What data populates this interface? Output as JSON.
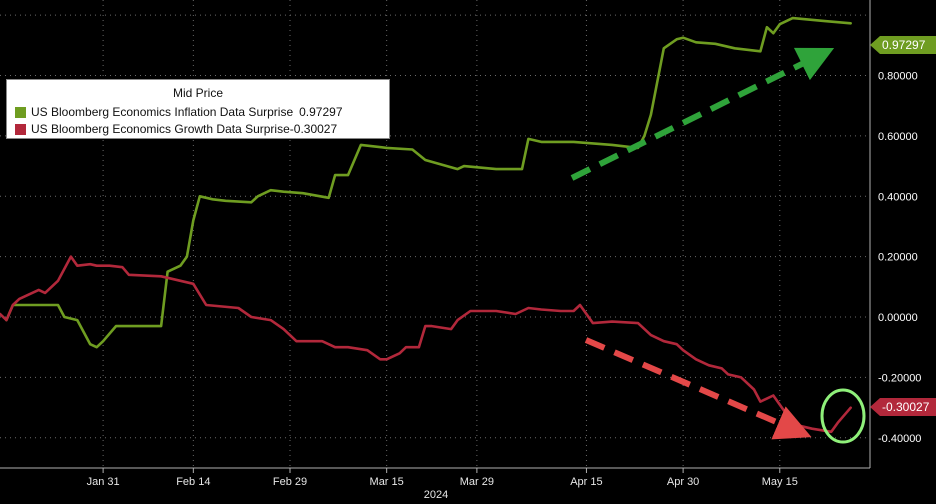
{
  "chart_data": {
    "type": "line",
    "title": "Mid Price",
    "xlabel": "2024",
    "ylabel": "",
    "ylim": [
      -0.5,
      1.05
    ],
    "yticks": [
      "0.80000",
      "0.60000",
      "0.40000",
      "0.20000",
      "0.00000",
      "-0.20000",
      "-0.40000"
    ],
    "ytick_values": [
      0.8,
      0.6,
      0.4,
      0.2,
      0.0,
      -0.2,
      -0.4
    ],
    "xticks": [
      "Jan 31",
      "Feb 14",
      "Feb 29",
      "Mar 15",
      "Mar 29",
      "Apr 15",
      "Apr 30",
      "May 15"
    ],
    "xtick_dates": [
      "2024-01-31",
      "2024-02-14",
      "2024-02-29",
      "2024-03-15",
      "2024-03-29",
      "2024-04-15",
      "2024-04-30",
      "2024-05-15"
    ],
    "xlim": [
      "2024-01-15",
      "2024-05-29"
    ],
    "grid": true,
    "legend": "top-left",
    "series": [
      {
        "name": "US Bloomberg Economics Inflation Data Surprise",
        "last_value": "0.97297",
        "color": "#6f9d21",
        "points": [
          [
            "2024-01-16",
            -0.01
          ],
          [
            "2024-01-17",
            0.04
          ],
          [
            "2024-01-21",
            0.04
          ],
          [
            "2024-01-24",
            0.04
          ],
          [
            "2024-01-25",
            0.0
          ],
          [
            "2024-01-27",
            -0.01
          ],
          [
            "2024-01-29",
            -0.09
          ],
          [
            "2024-01-30",
            -0.1
          ],
          [
            "2024-01-31",
            -0.08
          ],
          [
            "2024-02-02",
            -0.03
          ],
          [
            "2024-02-07",
            -0.03
          ],
          [
            "2024-02-09",
            -0.03
          ],
          [
            "2024-02-10",
            0.15
          ],
          [
            "2024-02-12",
            0.17
          ],
          [
            "2024-02-13",
            0.2
          ],
          [
            "2024-02-14",
            0.32
          ],
          [
            "2024-02-15",
            0.4
          ],
          [
            "2024-02-17",
            0.39
          ],
          [
            "2024-02-19",
            0.385
          ],
          [
            "2024-02-23",
            0.38
          ],
          [
            "2024-02-24",
            0.4
          ],
          [
            "2024-02-26",
            0.42
          ],
          [
            "2024-02-28",
            0.415
          ],
          [
            "2024-03-02",
            0.41
          ],
          [
            "2024-03-06",
            0.395
          ],
          [
            "2024-03-07",
            0.47
          ],
          [
            "2024-03-09",
            0.47
          ],
          [
            "2024-03-11",
            0.57
          ],
          [
            "2024-03-15",
            0.56
          ],
          [
            "2024-03-19",
            0.555
          ],
          [
            "2024-03-21",
            0.52
          ],
          [
            "2024-03-26",
            0.49
          ],
          [
            "2024-03-27",
            0.5
          ],
          [
            "2024-04-01",
            0.49
          ],
          [
            "2024-04-05",
            0.49
          ],
          [
            "2024-04-06",
            0.59
          ],
          [
            "2024-04-08",
            0.58
          ],
          [
            "2024-04-13",
            0.58
          ],
          [
            "2024-04-19",
            0.57
          ],
          [
            "2024-04-23",
            0.56
          ],
          [
            "2024-04-24",
            0.6
          ],
          [
            "2024-04-25",
            0.67
          ],
          [
            "2024-04-27",
            0.89
          ],
          [
            "2024-04-29",
            0.92
          ],
          [
            "2024-04-30",
            0.925
          ],
          [
            "2024-05-02",
            0.91
          ],
          [
            "2024-05-05",
            0.905
          ],
          [
            "2024-05-08",
            0.89
          ],
          [
            "2024-05-12",
            0.88
          ],
          [
            "2024-05-13",
            0.96
          ],
          [
            "2024-05-14",
            0.94
          ],
          [
            "2024-05-15",
            0.97
          ],
          [
            "2024-05-17",
            0.99
          ],
          [
            "2024-05-22",
            0.98
          ],
          [
            "2024-05-26",
            0.97297
          ]
        ]
      },
      {
        "name": "US Bloomberg Economics Growth Data Surprise",
        "last_value": "-0.30027",
        "color": "#b2283b",
        "points": [
          [
            "2024-01-15",
            0.01
          ],
          [
            "2024-01-16",
            -0.01
          ],
          [
            "2024-01-17",
            0.04
          ],
          [
            "2024-01-18",
            0.06
          ],
          [
            "2024-01-21",
            0.09
          ],
          [
            "2024-01-22",
            0.08
          ],
          [
            "2024-01-24",
            0.12
          ],
          [
            "2024-01-26",
            0.2
          ],
          [
            "2024-01-27",
            0.17
          ],
          [
            "2024-01-29",
            0.175
          ],
          [
            "2024-01-30",
            0.17
          ],
          [
            "2024-02-01",
            0.17
          ],
          [
            "2024-02-03",
            0.165
          ],
          [
            "2024-02-04",
            0.14
          ],
          [
            "2024-02-09",
            0.135
          ],
          [
            "2024-02-11",
            0.125
          ],
          [
            "2024-02-12",
            0.12
          ],
          [
            "2024-02-14",
            0.11
          ],
          [
            "2024-02-16",
            0.04
          ],
          [
            "2024-02-21",
            0.03
          ],
          [
            "2024-02-23",
            0.0
          ],
          [
            "2024-02-26",
            -0.01
          ],
          [
            "2024-02-28",
            -0.04
          ],
          [
            "2024-03-01",
            -0.08
          ],
          [
            "2024-03-05",
            -0.08
          ],
          [
            "2024-03-07",
            -0.1
          ],
          [
            "2024-03-09",
            -0.1
          ],
          [
            "2024-03-12",
            -0.11
          ],
          [
            "2024-03-14",
            -0.14
          ],
          [
            "2024-03-15",
            -0.14
          ],
          [
            "2024-03-17",
            -0.12
          ],
          [
            "2024-03-18",
            -0.1
          ],
          [
            "2024-03-20",
            -0.1
          ],
          [
            "2024-03-21",
            -0.03
          ],
          [
            "2024-03-22",
            -0.03
          ],
          [
            "2024-03-25",
            -0.04
          ],
          [
            "2024-03-26",
            -0.01
          ],
          [
            "2024-03-28",
            0.02
          ],
          [
            "2024-04-01",
            0.02
          ],
          [
            "2024-04-04",
            0.01
          ],
          [
            "2024-04-06",
            0.03
          ],
          [
            "2024-04-08",
            0.025
          ],
          [
            "2024-04-11",
            0.02
          ],
          [
            "2024-04-13",
            0.02
          ],
          [
            "2024-04-14",
            0.04
          ],
          [
            "2024-04-16",
            -0.02
          ],
          [
            "2024-04-19",
            -0.015
          ],
          [
            "2024-04-23",
            -0.02
          ],
          [
            "2024-04-25",
            -0.06
          ],
          [
            "2024-04-27",
            -0.08
          ],
          [
            "2024-04-29",
            -0.09
          ],
          [
            "2024-04-30",
            -0.11
          ],
          [
            "2024-05-02",
            -0.14
          ],
          [
            "2024-05-04",
            -0.16
          ],
          [
            "2024-05-06",
            -0.17
          ],
          [
            "2024-05-07",
            -0.19
          ],
          [
            "2024-05-09",
            -0.2
          ],
          [
            "2024-05-11",
            -0.24
          ],
          [
            "2024-05-12",
            -0.28
          ],
          [
            "2024-05-13",
            -0.27
          ],
          [
            "2024-05-14",
            -0.26
          ],
          [
            "2024-05-16",
            -0.32
          ],
          [
            "2024-05-18",
            -0.36
          ],
          [
            "2024-05-20",
            -0.37
          ],
          [
            "2024-05-23",
            -0.38
          ],
          [
            "2024-05-24",
            -0.35
          ],
          [
            "2024-05-26",
            -0.30027
          ]
        ]
      }
    ]
  },
  "legend_box": {
    "title": "Mid Price"
  },
  "colors": {
    "background": "#000000",
    "grid": "#555555",
    "arrow_green": "#2fa33a",
    "arrow_red": "#e34848",
    "circle": "#8ff07a"
  }
}
